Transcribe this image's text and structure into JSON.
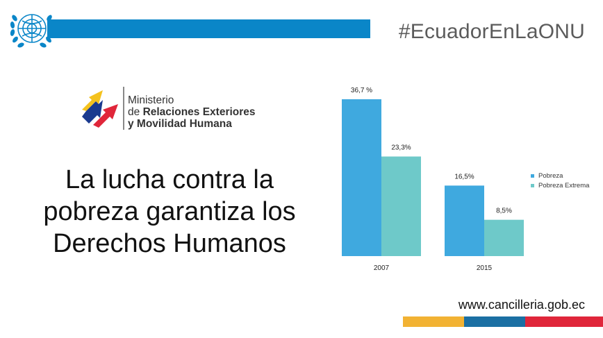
{
  "header": {
    "hashtag": "#EcuadorEnLaONU"
  },
  "ministry": {
    "line1": "Ministerio",
    "line2_prefix": "de ",
    "line2_bold": "Relaciones Exteriores",
    "line3": "y Movilidad Humana"
  },
  "headline": {
    "line1": "La lucha contra la",
    "line2": "pobreza garantiza los",
    "line3": "Derechos Humanos"
  },
  "footer": {
    "website": "www.cancilleria.gob.ec"
  },
  "colors": {
    "un_blue": "#0a86c8",
    "pobreza": "#3fa9df",
    "pobreza_extrema": "#6ec9c9",
    "strip_yellow": "#f2b233",
    "strip_blue": "#1b6fa3",
    "strip_red": "#e0263a"
  },
  "chart_data": {
    "type": "bar",
    "categories": [
      "2007",
      "2015"
    ],
    "series": [
      {
        "name": "Pobreza",
        "values": [
          36.7,
          16.5
        ],
        "labels": [
          "36,7 %",
          "16,5%"
        ]
      },
      {
        "name": "Pobreza Extrema",
        "values": [
          23.3,
          8.5
        ],
        "labels": [
          "23,3%",
          "8,5%"
        ]
      }
    ],
    "ylim": [
      0,
      40
    ],
    "legend": "right",
    "grid": false
  }
}
